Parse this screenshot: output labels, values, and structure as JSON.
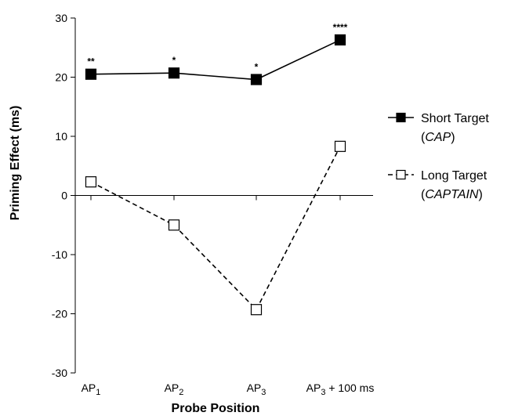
{
  "chart_data": {
    "type": "line",
    "title": "",
    "xlabel": "Probe Position",
    "ylabel": "Priming Effect (ms)",
    "ylim": [
      -30,
      30
    ],
    "yticks": [
      30,
      20,
      10,
      0,
      -10,
      -20,
      -30
    ],
    "categories": [
      {
        "base": "AP",
        "sub": "1",
        "suffix": ""
      },
      {
        "base": "AP",
        "sub": "2",
        "suffix": ""
      },
      {
        "base": "AP",
        "sub": "3",
        "suffix": ""
      },
      {
        "base": "AP",
        "sub": "3",
        "suffix": " + 100 ms"
      }
    ],
    "series": [
      {
        "name": "Short Target",
        "example": "CAP",
        "values": [
          20.5,
          20.7,
          19.6,
          26.3
        ],
        "significance": [
          "**",
          "*",
          "*",
          "****"
        ],
        "line_style": "solid",
        "marker": "filled-square",
        "color": "#000000"
      },
      {
        "name": "Long Target",
        "example": "CAPTAIN",
        "values": [
          2.3,
          -5.0,
          -19.3,
          8.3
        ],
        "significance": [
          "",
          "",
          "",
          ""
        ],
        "line_style": "dashed",
        "marker": "open-square",
        "color": "#000000"
      }
    ],
    "legend_position": "right",
    "grid": false
  }
}
